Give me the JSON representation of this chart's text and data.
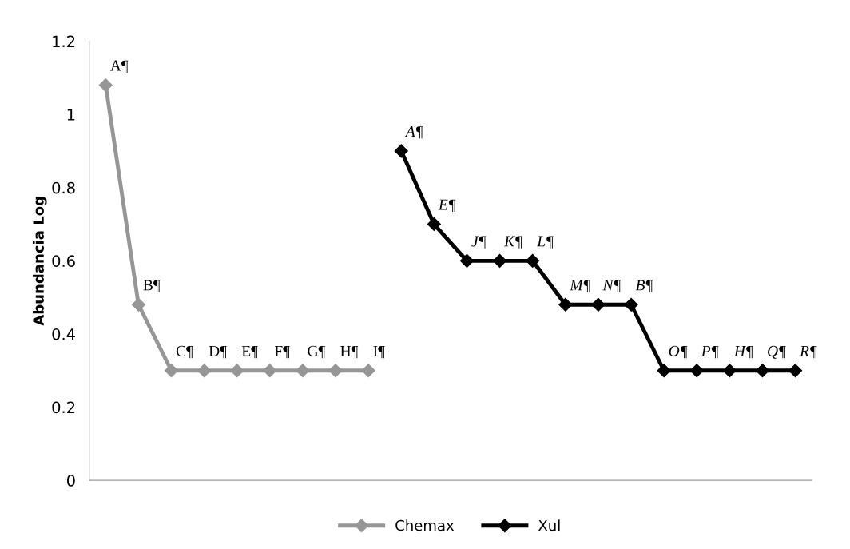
{
  "chart_data": {
    "type": "line",
    "ylabel": "Abundancia Log",
    "categories": [
      null,
      null,
      null,
      null,
      null,
      null,
      null,
      null,
      null,
      null,
      null,
      null,
      null,
      null,
      null,
      null,
      null,
      null,
      null,
      null,
      null,
      null
    ],
    "series": [
      {
        "name": "Chemax",
        "color": "#969696",
        "values": [
          1.08,
          0.48,
          0.3,
          0.3,
          0.3,
          0.3,
          0.3,
          0.3,
          0.3,
          null,
          null,
          null,
          null,
          null,
          null,
          null,
          null,
          null,
          null,
          null,
          null,
          null
        ],
        "value_labels": [
          "A¶",
          "B¶",
          "C¶",
          "D¶",
          "E¶",
          "F¶",
          "G¶",
          "H¶",
          "I¶",
          null,
          null,
          null,
          null,
          null,
          null,
          null,
          null,
          null,
          null,
          null,
          null,
          null
        ]
      },
      {
        "name": "Xul",
        "color": "#000000",
        "values": [
          null,
          null,
          null,
          null,
          null,
          null,
          null,
          null,
          null,
          0.9,
          0.7,
          0.6,
          0.6,
          0.6,
          0.48,
          0.48,
          0.48,
          0.3,
          0.3,
          0.3,
          0.3,
          0.3
        ],
        "value_labels": [
          null,
          null,
          null,
          null,
          null,
          null,
          null,
          null,
          null,
          "A¶",
          "E¶",
          "J¶",
          "K¶",
          "L¶",
          "M¶",
          "N¶",
          "B¶",
          "O¶",
          "P¶",
          "H¶",
          "Q¶",
          "R¶"
        ]
      }
    ],
    "ylim": [
      0,
      1.2
    ],
    "yticks": [
      0,
      0.2,
      0.4,
      0.6,
      0.8,
      1,
      1.2
    ],
    "marker": "diamond",
    "line_style": "solid",
    "grid": false,
    "legend": "bottom"
  }
}
